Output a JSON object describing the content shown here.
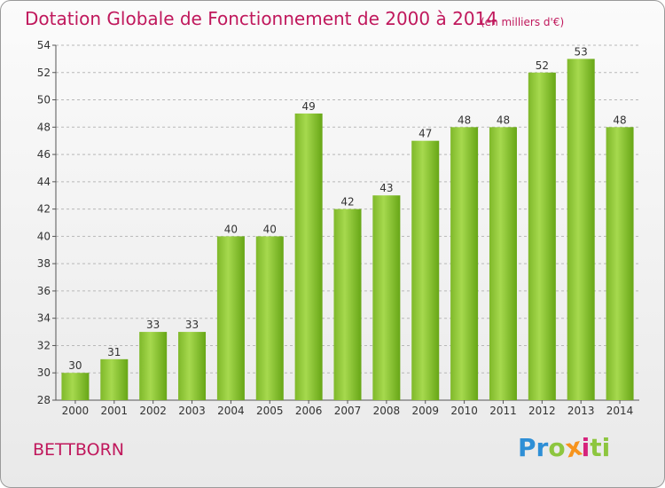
{
  "header": {
    "title": "Dotation Globale de Fonctionnement de 2000 à 2014",
    "subtitle": "(en milliers d'€)"
  },
  "footer": {
    "place": "BETTBORN",
    "logo_text": "Proxiti",
    "logo_letters": [
      {
        "char": "P",
        "color": "#2e8fd6"
      },
      {
        "char": "r",
        "color": "#2e8fd6"
      },
      {
        "char": "o",
        "color": "#8dc63f"
      },
      {
        "char": "x",
        "color": "#f7941d"
      },
      {
        "char": "i",
        "color": "#d6237c"
      },
      {
        "char": "t",
        "color": "#8dc63f"
      },
      {
        "char": "i",
        "color": "#8dc63f"
      }
    ]
  },
  "colors": {
    "bar_light": "#a6d94e",
    "bar_dark": "#67a616",
    "title": "#c0185c",
    "grid": "#b8b8b8"
  },
  "chart_data": {
    "type": "bar",
    "categories": [
      "2000",
      "2001",
      "2002",
      "2003",
      "2004",
      "2005",
      "2006",
      "2007",
      "2008",
      "2009",
      "2010",
      "2011",
      "2012",
      "2013",
      "2014"
    ],
    "values": [
      30,
      31,
      33,
      33,
      40,
      40,
      49,
      42,
      43,
      47,
      48,
      48,
      52,
      53,
      48
    ],
    "title": "Dotation Globale de Fonctionnement de 2000 à 2014",
    "subtitle": "(en milliers d'€)",
    "xlabel": "",
    "ylabel": "",
    "ylim": [
      28,
      54
    ],
    "yticks": [
      28,
      30,
      32,
      34,
      36,
      38,
      40,
      42,
      44,
      46,
      48,
      50,
      52,
      54
    ],
    "grid": true,
    "grid_style": "dashed",
    "legend": "none"
  }
}
